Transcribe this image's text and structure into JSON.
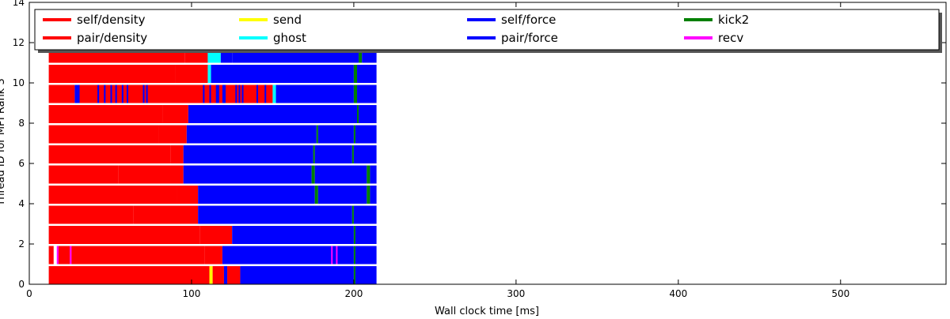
{
  "chart_data": {
    "type": "bar",
    "orientation": "horizontal",
    "title": "",
    "xlabel": "Wall clock time [ms]",
    "ylabel": "Thread ID for MPI Rank 3",
    "xlim": [
      0,
      565
    ],
    "ylim": [
      0,
      14
    ],
    "xticks": [
      0,
      100,
      200,
      300,
      400,
      500
    ],
    "yticks": [
      0,
      2,
      4,
      6,
      8,
      10,
      12,
      14
    ],
    "grid": false,
    "legend": {
      "placement": "top",
      "columns": 5,
      "entries": [
        {
          "label": "self/density",
          "color": "#ff0000"
        },
        {
          "label": "pair/density",
          "color": "#ff0000"
        },
        {
          "label": "send",
          "color": "#ffff00"
        },
        {
          "label": "ghost",
          "color": "#00ffff"
        },
        {
          "label": "self/force",
          "color": "#0000ff"
        },
        {
          "label": "pair/force",
          "color": "#0000ff"
        },
        {
          "label": "kick2",
          "color": "#008000"
        },
        {
          "label": "recv",
          "color": "#ff00ff"
        }
      ]
    },
    "series": [
      {
        "thread": 0,
        "segments": [
          [
            12,
            111,
            "pair/density"
          ],
          [
            111,
            113,
            "send"
          ],
          [
            113,
            120,
            "self/density"
          ],
          [
            120,
            122,
            "pair/force"
          ],
          [
            122,
            130,
            "pair/density"
          ],
          [
            130,
            200,
            "pair/force"
          ],
          [
            200,
            201,
            "kick2"
          ],
          [
            201,
            214,
            "pair/force"
          ]
        ]
      },
      {
        "thread": 1,
        "segments": [
          [
            12,
            15,
            "pair/density"
          ],
          [
            17,
            18,
            "recv"
          ],
          [
            18,
            25,
            "pair/density"
          ],
          [
            25,
            26,
            "recv"
          ],
          [
            26,
            108,
            "pair/density"
          ],
          [
            108,
            119,
            "pair/density"
          ],
          [
            119,
            200,
            "pair/force"
          ],
          [
            200,
            201,
            "kick2"
          ],
          [
            201,
            214,
            "pair/force"
          ]
        ]
      },
      {
        "thread": 2,
        "segments": [
          [
            12,
            105,
            "pair/density"
          ],
          [
            105,
            125,
            "pair/density"
          ],
          [
            125,
            200,
            "pair/force"
          ],
          [
            200,
            201,
            "kick2"
          ],
          [
            201,
            214,
            "pair/force"
          ]
        ]
      },
      {
        "thread": 3,
        "segments": [
          [
            12,
            64,
            "pair/density"
          ],
          [
            64,
            104,
            "pair/density"
          ],
          [
            104,
            199,
            "pair/force"
          ],
          [
            199,
            200,
            "kick2"
          ],
          [
            200,
            214,
            "pair/force"
          ]
        ]
      },
      {
        "thread": 4,
        "segments": [
          [
            12,
            91,
            "pair/density"
          ],
          [
            91,
            104,
            "pair/density"
          ],
          [
            104,
            176,
            "pair/force"
          ],
          [
            176,
            178,
            "kick2"
          ],
          [
            178,
            208,
            "pair/force"
          ],
          [
            208,
            210,
            "kick2"
          ],
          [
            210,
            214,
            "pair/force"
          ]
        ]
      },
      {
        "thread": 5,
        "segments": [
          [
            12,
            55,
            "pair/density"
          ],
          [
            55,
            95,
            "pair/density"
          ],
          [
            95,
            174,
            "pair/force"
          ],
          [
            174,
            176,
            "kick2"
          ],
          [
            176,
            208,
            "pair/force"
          ],
          [
            208,
            210,
            "kick2"
          ],
          [
            210,
            214,
            "pair/force"
          ]
        ]
      },
      {
        "thread": 6,
        "segments": [
          [
            12,
            87,
            "pair/density"
          ],
          [
            87,
            95,
            "pair/density"
          ],
          [
            95,
            175,
            "pair/force"
          ],
          [
            175,
            176,
            "kick2"
          ],
          [
            176,
            199,
            "pair/force"
          ],
          [
            199,
            200,
            "kick2"
          ],
          [
            200,
            214,
            "pair/force"
          ]
        ]
      },
      {
        "thread": 7,
        "segments": [
          [
            12,
            80,
            "pair/density"
          ],
          [
            80,
            97,
            "pair/density"
          ],
          [
            97,
            177,
            "pair/force"
          ],
          [
            177,
            178,
            "kick2"
          ],
          [
            178,
            200,
            "pair/force"
          ],
          [
            200,
            201,
            "kick2"
          ],
          [
            201,
            214,
            "pair/force"
          ]
        ]
      },
      {
        "thread": 8,
        "segments": [
          [
            12,
            82,
            "pair/density"
          ],
          [
            82,
            98,
            "pair/density"
          ],
          [
            98,
            202,
            "pair/force"
          ],
          [
            202,
            203,
            "kick2"
          ],
          [
            203,
            214,
            "pair/force"
          ]
        ]
      },
      {
        "thread": 9,
        "segments": [
          [
            12,
            28,
            "pair/density"
          ],
          [
            28,
            30,
            "pair/force"
          ],
          [
            30,
            150,
            "pair/density"
          ],
          [
            150,
            152,
            "ghost"
          ],
          [
            152,
            200,
            "pair/force"
          ],
          [
            200,
            202,
            "kick2"
          ],
          [
            202,
            214,
            "pair/force"
          ]
        ]
      },
      {
        "thread": 10,
        "segments": [
          [
            12,
            90,
            "pair/density"
          ],
          [
            90,
            110,
            "pair/density"
          ],
          [
            110,
            112,
            "ghost"
          ],
          [
            112,
            200,
            "pair/force"
          ],
          [
            200,
            202,
            "kick2"
          ],
          [
            202,
            214,
            "pair/force"
          ]
        ]
      },
      {
        "thread": 11,
        "segments": [
          [
            12,
            96,
            "pair/density"
          ],
          [
            96,
            110,
            "pair/density"
          ],
          [
            110,
            118,
            "ghost"
          ],
          [
            118,
            125,
            "pair/force"
          ],
          [
            125,
            203,
            "pair/force"
          ],
          [
            203,
            205,
            "kick2"
          ],
          [
            205,
            214,
            "pair/force"
          ]
        ]
      }
    ],
    "interleaved_markers": [
      {
        "thread": 1,
        "color": "#ff00ff",
        "ranges": [
          [
            17,
            18
          ],
          [
            25,
            26
          ],
          [
            186,
            187
          ],
          [
            189,
            190
          ]
        ]
      },
      {
        "thread": 9,
        "color": "#0000ff",
        "ranges": [
          [
            30,
            31
          ],
          [
            42,
            43
          ],
          [
            46,
            47
          ],
          [
            50,
            51
          ],
          [
            53,
            54
          ],
          [
            57,
            58
          ],
          [
            60,
            61
          ],
          [
            70,
            71
          ],
          [
            72,
            73
          ],
          [
            107,
            108
          ],
          [
            111,
            112
          ],
          [
            115,
            117
          ],
          [
            119,
            121
          ],
          [
            127,
            128
          ],
          [
            129,
            130
          ],
          [
            131,
            132
          ],
          [
            140,
            141
          ],
          [
            145,
            146
          ]
        ]
      },
      {
        "thread": 11,
        "color": "#00ffff",
        "ranges": [
          [
            110,
            111
          ],
          [
            113,
            114
          ],
          [
            115,
            116
          ]
        ]
      }
    ]
  }
}
